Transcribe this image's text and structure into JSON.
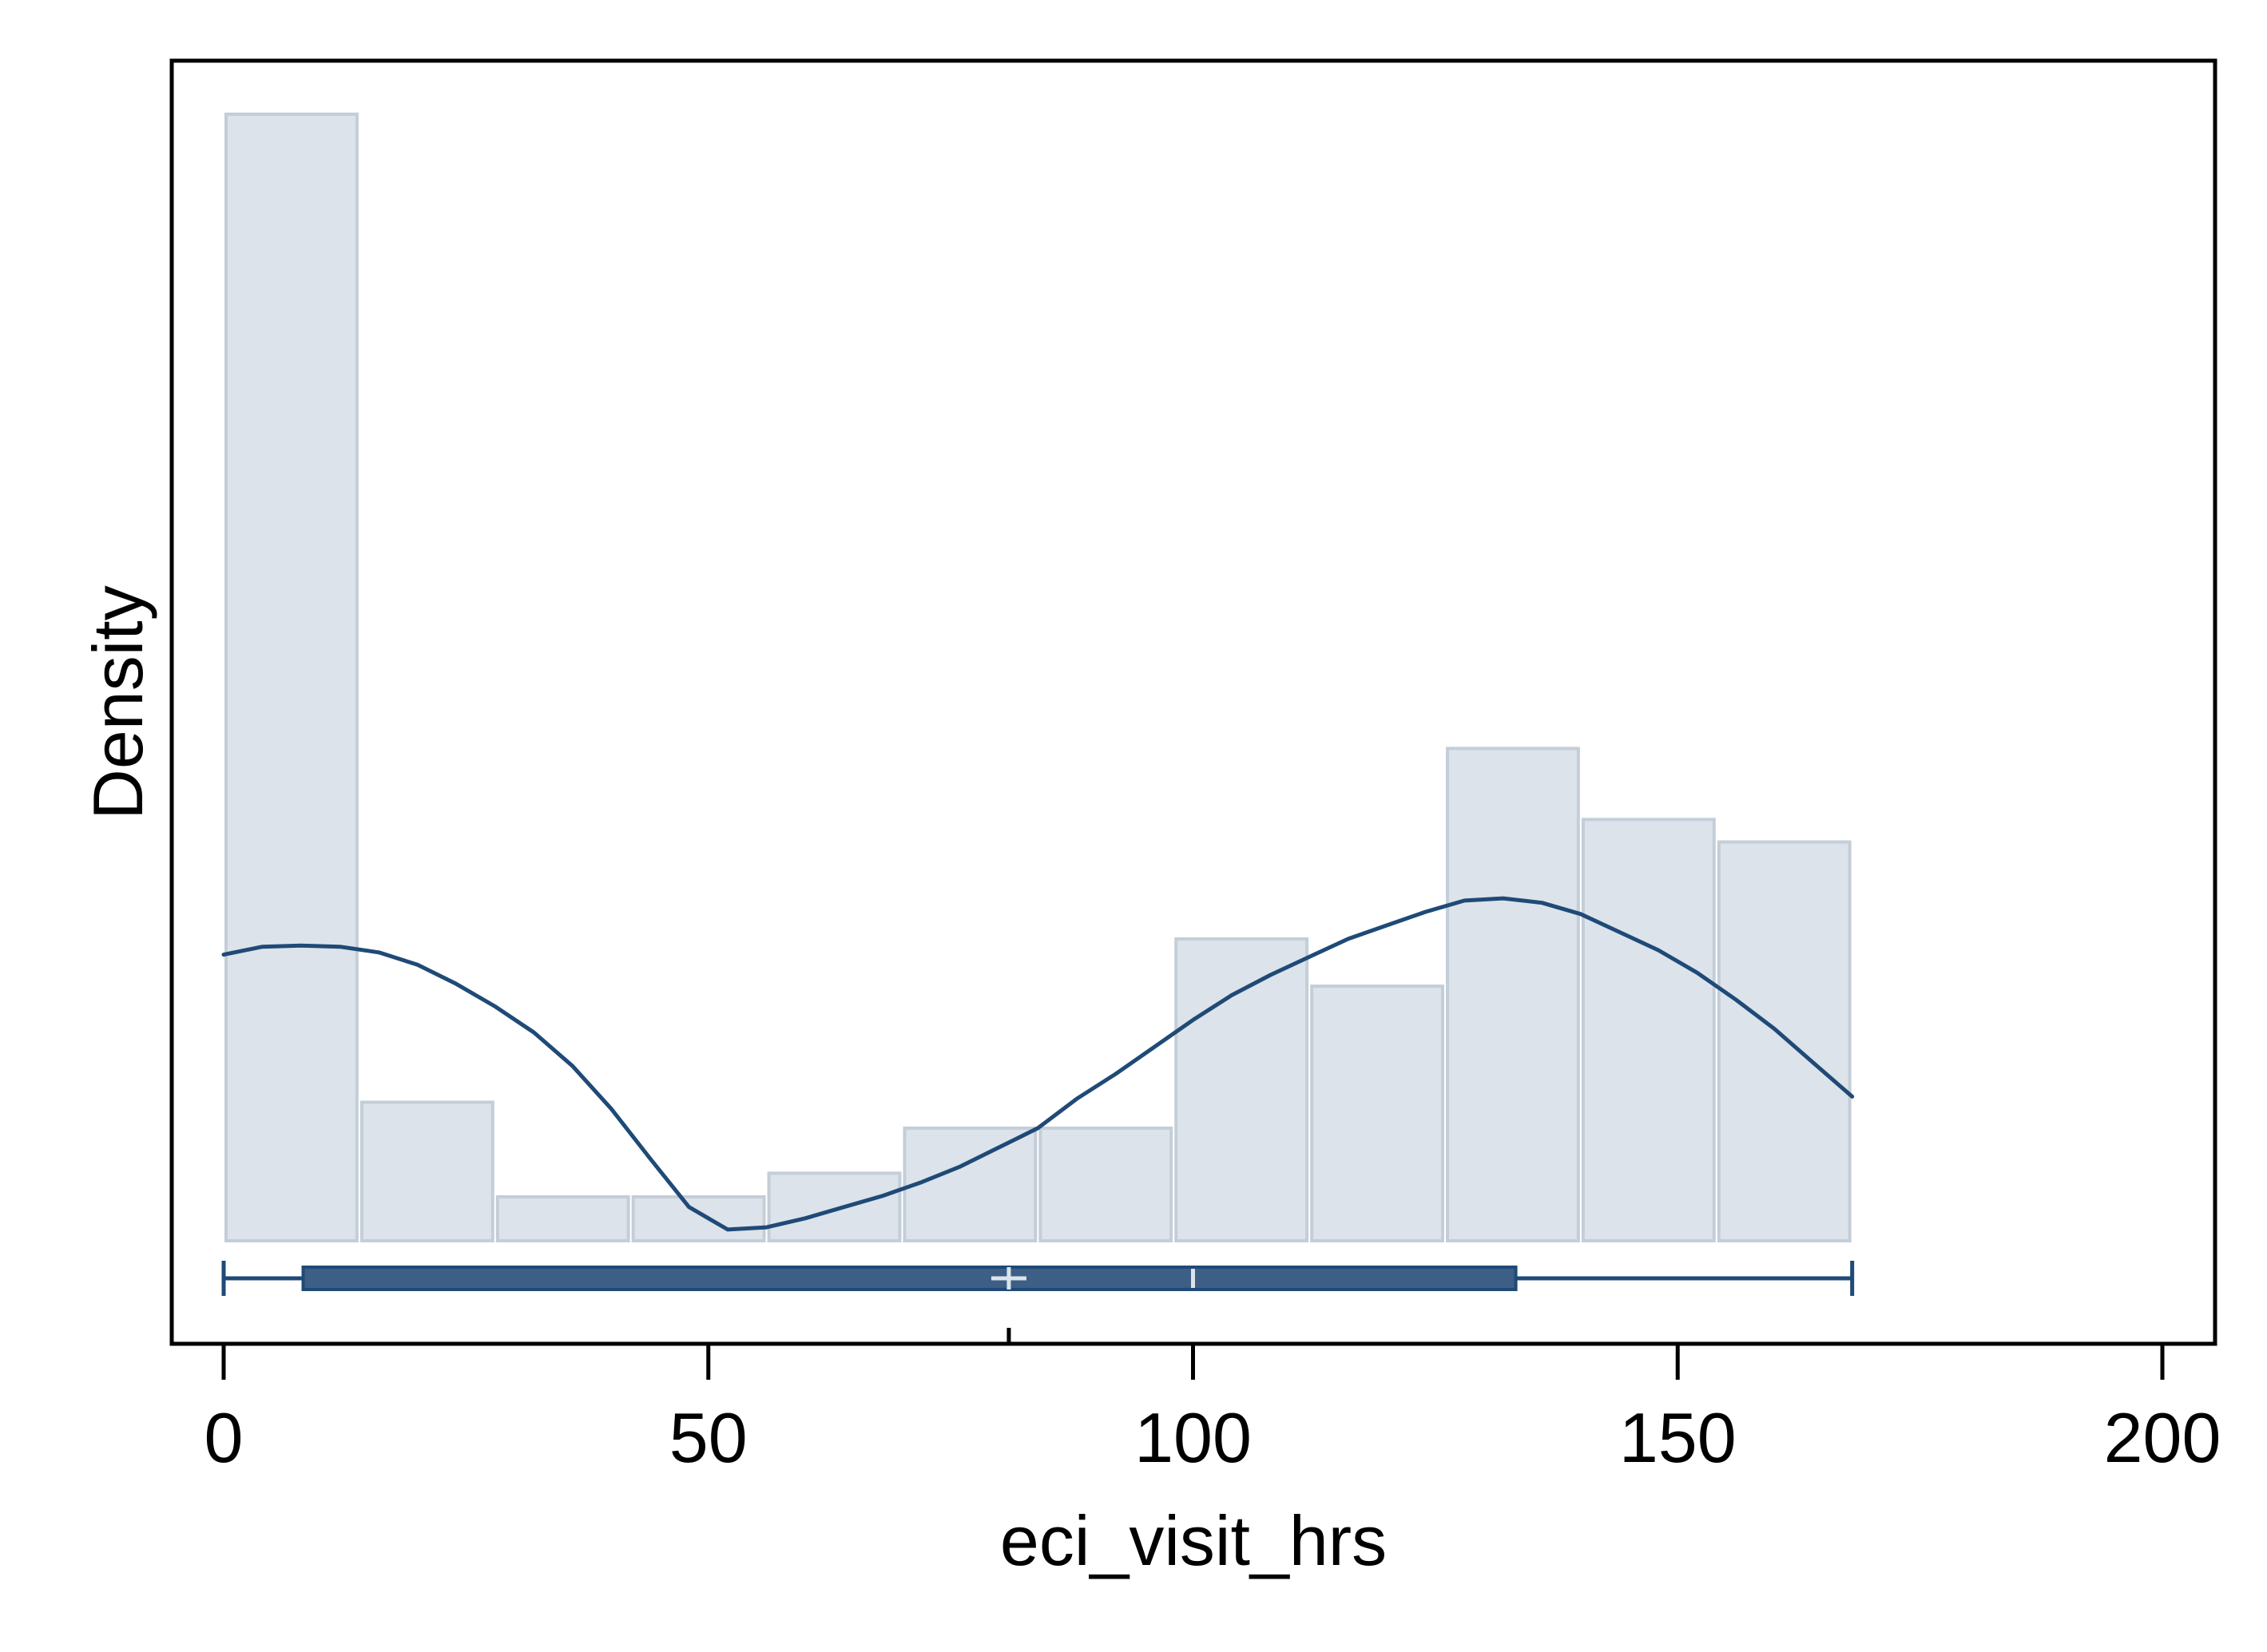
{
  "chart_data": {
    "type": "histogram",
    "xlabel": "eci_visit_hrs",
    "ylabel": "Density",
    "xlim": [
      -2,
      206
    ],
    "x_ticks": [
      0,
      50,
      100,
      150,
      200
    ],
    "y_ticks": [],
    "grid": false,
    "legend": "none",
    "histogram": {
      "bin_edges": [
        0,
        14,
        28,
        42,
        56,
        70,
        84,
        98,
        112,
        126,
        140,
        154,
        168
      ],
      "relative_heights": [
        1.0,
        0.123,
        0.039,
        0.039,
        0.06,
        0.1,
        0.1,
        0.268,
        0.226,
        0.437,
        0.374,
        0.354
      ]
    },
    "density_curve": {
      "x": [
        0,
        4,
        8,
        12,
        16,
        20,
        24,
        28,
        32,
        36,
        40,
        44,
        48,
        52,
        56,
        60,
        64,
        68,
        72,
        76,
        80,
        84,
        88,
        92,
        96,
        100,
        104,
        108,
        112,
        116,
        120,
        124,
        128,
        132,
        136,
        140,
        144,
        148,
        152,
        156,
        160,
        164,
        168
      ],
      "relative_heights": [
        0.254,
        0.261,
        0.262,
        0.261,
        0.256,
        0.245,
        0.228,
        0.208,
        0.185,
        0.155,
        0.117,
        0.073,
        0.03,
        0.01,
        0.012,
        0.02,
        0.03,
        0.04,
        0.052,
        0.066,
        0.083,
        0.1,
        0.126,
        0.148,
        0.172,
        0.196,
        0.218,
        0.236,
        0.252,
        0.268,
        0.28,
        0.292,
        0.302,
        0.304,
        0.3,
        0.29,
        0.274,
        0.258,
        0.238,
        0.214,
        0.188,
        0.158,
        0.128
      ]
    },
    "boxplot": {
      "min": 0,
      "q1": 8.2,
      "median": 100,
      "mean": 81,
      "q3": 133.3,
      "max": 168
    },
    "colors": {
      "bar_fill": "#dce3ea",
      "bar_edge": "#c4ced8",
      "curve": "#1f4a77",
      "box_fill": "#3d5f85",
      "box_edge": "#1f4a77",
      "box_marker": "#dce3ea",
      "frame": "#000000"
    }
  }
}
